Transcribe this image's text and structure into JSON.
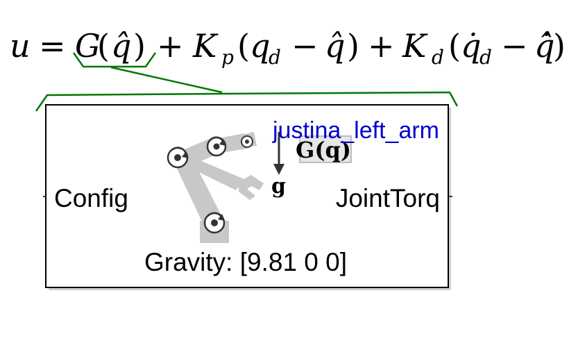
{
  "equation": {
    "u": "u",
    "eq": "=",
    "G": "G",
    "lparen1": "(",
    "qhat1": "q̂",
    "rparen1": ")",
    "plus1": "+",
    "Kp_base": "K",
    "Kp_sub": "p",
    "lparen2": "(",
    "qd_base": "q",
    "qd_sub": "d",
    "minus1": "−",
    "qhat2": "q̂",
    "rparen2": ")",
    "plus2": "+",
    "Kd_base": "K",
    "Kd_sub": "d",
    "lparen3": "(",
    "qdotd_base": "q̇",
    "qdotd_sub": "d",
    "minus2": "−",
    "qhatdot": "q̂̇",
    "rparen3": ")"
  },
  "block": {
    "name": "justina_left_arm",
    "input_port": "Config",
    "output_port": "JointTorq",
    "parameter": "Gravity: [9.81 0 0]",
    "icon_gravity_symbol": "g",
    "icon_function_label": "G(q)",
    "icon": "robot-arm-gravity-torque-icon"
  },
  "colors": {
    "brace": "#007700",
    "block_border": "#000000",
    "block_name": "#0000cc",
    "arm_gray": "#c8c8c8",
    "joint_dark": "#333333"
  }
}
